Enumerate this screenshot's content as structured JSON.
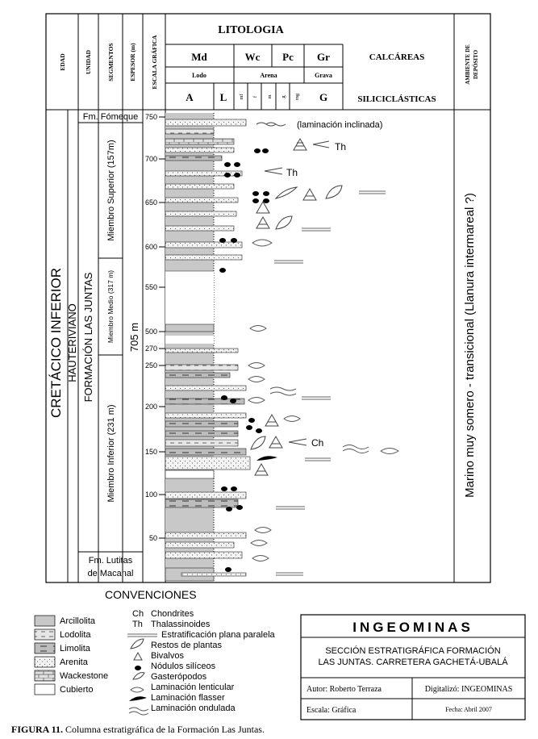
{
  "header": {
    "litologia": "LITOLOGIA",
    "edad": "EDAD",
    "unidad": "UNIDAD",
    "segmentos": "SEGMENTOS",
    "espesor": "ESPESOR (m)",
    "escala": "ESCALA GRÁFICA",
    "ambiente": "AMBIENTE DE DEPÓSITO",
    "calc_codes": [
      "Md",
      "Wc",
      "Pc",
      "Gr"
    ],
    "calcareas": "CALCÁREAS",
    "lodo": "Lodo",
    "arena": "Arena",
    "grava": "Grava",
    "silic_codes": [
      "A",
      "L"
    ],
    "grain_codes": [
      "mf",
      "f",
      "m",
      "g",
      "mg"
    ],
    "silic_g": "G",
    "siliciclasticas": "SILICICLÁSTICAS"
  },
  "column": {
    "edad_text": "CRETÁCICO INFERIOR",
    "hauteriviano": "HAUTERIVIANO",
    "formacion": "FORMACIÓN LAS JUNTAS",
    "espesor_total": "705 m",
    "fm_fomeque": "Fm. Fómeque",
    "fm_lutitas_1": "Fm. Lutitas",
    "fm_lutitas_2": "de Macanal",
    "miembro_superior": "Miembro Superior (157m)",
    "miembro_medio": "Miembro Medio (317 m)",
    "miembro_inferior": "Miembro Inferior (231 m)",
    "ambiente_text": "Marino muy somero - transicional (Llanura intermareal ?)",
    "scale_ticks": [
      "750",
      "700",
      "650",
      "600",
      "550",
      "500",
      "270",
      "250",
      "200",
      "150",
      "100",
      "50"
    ],
    "annotations": {
      "laminacion_inclinada": "(laminación inclinada)",
      "th_1": "Th",
      "th_2": "Th",
      "ch": "Ch"
    }
  },
  "legend": {
    "title": "CONVENCIONES",
    "lithologies": [
      "Arcillolita",
      "Lodolita",
      "Limolita",
      "Arenita",
      "Wackestone",
      "Cubierto"
    ],
    "symbols": [
      {
        "code": "Ch",
        "label": "Chondrites"
      },
      {
        "code": "Th",
        "label": "Thalassinoides"
      },
      {
        "code": "",
        "label": "Estratificación plana paralela"
      },
      {
        "code": "",
        "label": "Restos de plantas"
      },
      {
        "code": "",
        "label": "Bivalvos"
      },
      {
        "code": "",
        "label": "Nódulos silíceos"
      },
      {
        "code": "",
        "label": "Gasterópodos"
      },
      {
        "code": "",
        "label": "Laminación lenticular"
      },
      {
        "code": "",
        "label": "Laminación flasser"
      },
      {
        "code": "",
        "label": "Laminación ondulada"
      }
    ]
  },
  "titleblock": {
    "org": "INGEOMINAS",
    "section_1": "SECCIÓN ESTRATIGRÁFICA FORMACIÓN",
    "section_2": "LAS JUNTAS. CARRETERA GACHETÁ-UBALÁ",
    "autor": "Autor: Roberto Terraza",
    "digitalizo": "Digitalizó: INGEOMINAS",
    "escala": "Escala: Gráfica",
    "fecha": "Fecha: Abril 2007"
  },
  "caption": {
    "label": "FIGURA 11.",
    "text": "Columna estratigráfica de la Formación Las Juntas."
  }
}
